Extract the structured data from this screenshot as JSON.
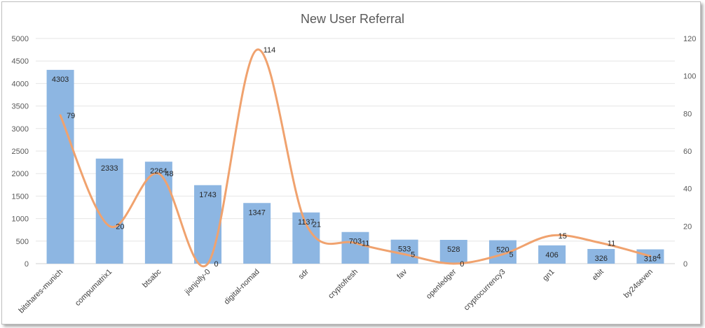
{
  "chart_data": {
    "type": "bar",
    "title": "New User Referral",
    "categories": [
      "bitshares-munich",
      "compumatrix1",
      "btsabc",
      "jianjolly-0",
      "digital-nomad",
      "sdr",
      "cryptofresh",
      "fav",
      "openledger",
      "cryptocurrency3",
      "gn1",
      "ebit",
      "by24seven"
    ],
    "series": [
      {
        "type": "bar",
        "axis": "left",
        "values": [
          4303,
          2333,
          2264,
          1743,
          1347,
          1137,
          703,
          533,
          528,
          520,
          406,
          326,
          318
        ]
      },
      {
        "type": "line",
        "axis": "right",
        "smooth": true,
        "values": [
          79,
          20,
          48,
          0,
          114,
          21,
          11,
          5,
          0,
          5,
          15,
          11,
          4
        ]
      }
    ],
    "y_left": {
      "min": 0,
      "max": 5000,
      "ticks": [
        "0",
        "500",
        "1000",
        "1500",
        "2000",
        "2500",
        "3000",
        "3500",
        "4000",
        "4500",
        "5000"
      ]
    },
    "y_right": {
      "min": 0,
      "max": 120,
      "ticks": [
        "0",
        "20",
        "40",
        "60",
        "80",
        "100",
        "120"
      ]
    },
    "grid": true,
    "legend": "none",
    "colors": {
      "bar": "#8db6e2",
      "line": "#f0a26e",
      "grid": "#e6e6e6"
    }
  }
}
